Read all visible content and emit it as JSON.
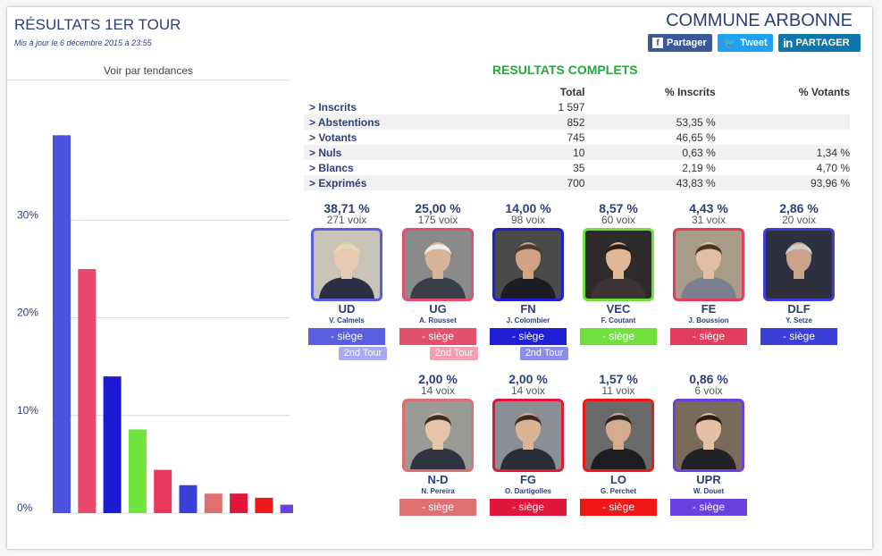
{
  "header": {
    "title": "RÉSULTATS 1ER TOUR",
    "updated": "Mis à jour le 6 décembre 2015 à 23:55",
    "commune": "COMMUNE ARBONNE"
  },
  "share": {
    "facebook": "Partager",
    "twitter": "Tweet",
    "linkedin": "PARTAGER"
  },
  "trend": {
    "label": "Voir par tendances"
  },
  "chart_data": {
    "type": "bar",
    "categories": [
      "UD",
      "UG",
      "FN",
      "VEC",
      "FE",
      "DLF",
      "N-D",
      "FG",
      "LO",
      "UPR"
    ],
    "values": [
      38.71,
      25.0,
      14.0,
      8.57,
      4.43,
      2.86,
      2.0,
      2.0,
      1.57,
      0.86
    ],
    "colors": [
      "#4d52e0",
      "#e9496c",
      "#1b1bd4",
      "#6fe33e",
      "#e83a5e",
      "#3a3fd8",
      "#e07070",
      "#e0173a",
      "#f01717",
      "#6a3fe0"
    ],
    "ylim": [
      0,
      40
    ],
    "ytick_labels": [
      "0%",
      "10%",
      "20%",
      "30%"
    ],
    "grid": true
  },
  "results": {
    "title": "RESULTATS COMPLETS",
    "headers": [
      "",
      "Total",
      "% Inscrits",
      "% Votants"
    ],
    "rows": [
      [
        "> Inscrits",
        "1 597",
        "",
        ""
      ],
      [
        "> Abstentions",
        "852",
        "53,35 %",
        ""
      ],
      [
        "> Votants",
        "745",
        "46,65 %",
        ""
      ],
      [
        "> Nuls",
        "10",
        "0,63 %",
        "1,34 %"
      ],
      [
        "> Blancs",
        "35",
        "2,19 %",
        "4,70 %"
      ],
      [
        "> Exprimés",
        "700",
        "43,83 %",
        "93,96 %"
      ]
    ]
  },
  "candidates": [
    {
      "pct": "38,71 %",
      "votes": "271 voix",
      "party": "UD",
      "name": "V. Calmels",
      "seat": "- siège",
      "color": "#5a5fe0",
      "tour": "2nd Tour",
      "tour_color": "#a8aaf0",
      "photo_bg": "#c9c3b8",
      "face": "#e8c8b0",
      "hair": "#e3d9b5",
      "cloth": "#2a2f44"
    },
    {
      "pct": "25,00 %",
      "votes": "175 voix",
      "party": "UG",
      "name": "A. Rousset",
      "seat": "- siège",
      "color": "#e2506e",
      "tour": "2nd Tour",
      "tour_color": "#f0a0b0",
      "photo_bg": "#8a8a8a",
      "face": "#d8b49a",
      "hair": "#eeeeee",
      "cloth": "#3a3d4a"
    },
    {
      "pct": "14,00 %",
      "votes": "98 voix",
      "party": "FN",
      "name": "J. Colombier",
      "seat": "- siège",
      "color": "#1f1fd6",
      "tour": "2nd Tour",
      "tour_color": "#8c8cec",
      "photo_bg": "#4a4a4a",
      "face": "#cfa384",
      "hair": "#4a3b30",
      "cloth": "#1c1c24"
    },
    {
      "pct": "8,57 %",
      "votes": "60 voix",
      "party": "VEC",
      "name": "F. Coutant",
      "seat": "- siège",
      "color": "#6fe03e",
      "tour": "",
      "tour_color": "",
      "photo_bg": "#2e2a2a",
      "face": "#e0b898",
      "hair": "#2a1e18",
      "cloth": "#3b3434"
    },
    {
      "pct": "4,43 %",
      "votes": "31 voix",
      "party": "FE",
      "name": "J. Boussion",
      "seat": "- siège",
      "color": "#e23c5e",
      "tour": "",
      "tour_color": "",
      "photo_bg": "#a89c88",
      "face": "#e2bfa4",
      "hair": "#4a3424",
      "cloth": "#7a8090"
    },
    {
      "pct": "2,86 %",
      "votes": "20 voix",
      "party": "DLF",
      "name": "Y. Setze",
      "seat": "- siège",
      "color": "#3a3fd8",
      "tour": "",
      "tour_color": "",
      "photo_bg": "#2c3040",
      "face": "#c9a48a",
      "hair": "#cfcfcf",
      "cloth": "#30303a"
    },
    {
      "pct": "2,00 %",
      "votes": "14 voix",
      "party": "N-D",
      "name": "N. Pereira",
      "seat": "- siège",
      "color": "#e07070",
      "tour": "",
      "tour_color": "",
      "photo_bg": "#9a9a96",
      "face": "#e6c4aa",
      "hair": "#3c2c22",
      "cloth": "#303440"
    },
    {
      "pct": "2,00 %",
      "votes": "14 voix",
      "party": "FG",
      "name": "O. Dartigolles",
      "seat": "- siège",
      "color": "#e0173a",
      "tour": "",
      "tour_color": "",
      "photo_bg": "#8a8f96",
      "face": "#d9b496",
      "hair": "#3a2a20",
      "cloth": "#2a2c36"
    },
    {
      "pct": "1,57 %",
      "votes": "11 voix",
      "party": "LO",
      "name": "G. Perchet",
      "seat": "- siège",
      "color": "#f01717",
      "tour": "",
      "tour_color": "",
      "photo_bg": "#6a6a6a",
      "face": "#d6ac90",
      "hair": "#2a2420",
      "cloth": "#1e1e22"
    },
    {
      "pct": "0,86 %",
      "votes": "6 voix",
      "party": "UPR",
      "name": "W. Douet",
      "seat": "- siège",
      "color": "#6a40e0",
      "tour": "",
      "tour_color": "",
      "photo_bg": "#7a6a5a",
      "face": "#e4c0a4",
      "hair": "#2a1c14",
      "cloth": "#222226"
    }
  ]
}
